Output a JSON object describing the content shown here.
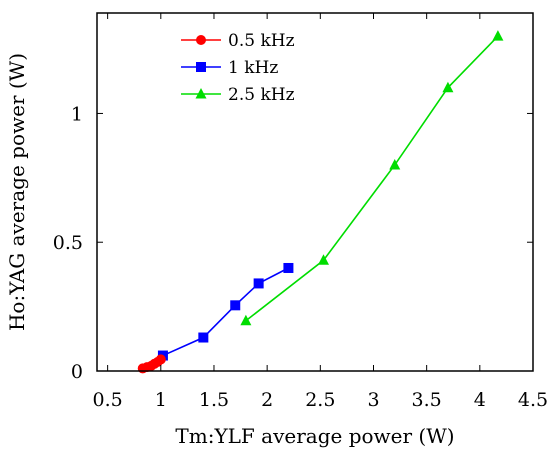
{
  "chart_data": {
    "type": "line",
    "xlabel": "Tm:YLF average power (W)",
    "ylabel": "Ho:YAG average power (W)",
    "xlim": [
      0.4,
      4.5
    ],
    "ylim": [
      0,
      1.39
    ],
    "x_ticks": [
      0.5,
      1,
      1.5,
      2,
      2.5,
      3,
      3.5,
      4,
      4.5
    ],
    "x_tick_labels": [
      "0.5",
      "1",
      "1.5",
      "2",
      "2.5",
      "3",
      "3.5",
      "4",
      "4.5"
    ],
    "y_ticks": [
      0,
      0.5,
      1
    ],
    "y_tick_labels": [
      "0",
      "0.5",
      "1"
    ],
    "grid": false,
    "legend_position": "top-left",
    "series": [
      {
        "name": "0.5 kHz",
        "color": "#ff0000",
        "marker": "circle",
        "x": [
          0.83,
          0.87,
          0.91,
          0.94,
          0.97,
          1.0
        ],
        "y": [
          0.01,
          0.015,
          0.02,
          0.028,
          0.035,
          0.045
        ]
      },
      {
        "name": "1 kHz",
        "color": "#0000ff",
        "marker": "square",
        "x": [
          1.02,
          1.4,
          1.7,
          1.92,
          2.2
        ],
        "y": [
          0.06,
          0.13,
          0.255,
          0.34,
          0.4
        ]
      },
      {
        "name": "2.5 kHz",
        "color": "#00dd00",
        "marker": "triangle",
        "x": [
          1.8,
          2.53,
          3.2,
          3.7,
          4.17
        ],
        "y": [
          0.195,
          0.43,
          0.8,
          1.1,
          1.3
        ]
      }
    ]
  }
}
